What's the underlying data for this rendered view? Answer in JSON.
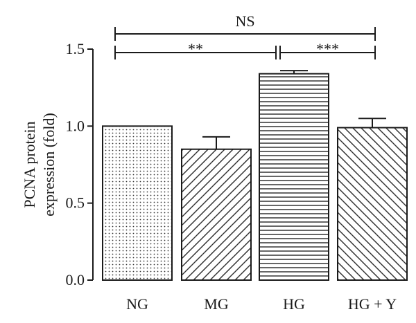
{
  "chart_data": {
    "type": "bar",
    "categories": [
      "NG",
      "MG",
      "HG",
      "HG + Y"
    ],
    "values": [
      1.0,
      0.85,
      1.34,
      0.99
    ],
    "error_upper": [
      0.0,
      0.08,
      0.02,
      0.06
    ],
    "patterns": [
      "dots",
      "diagonal",
      "horizontal",
      "back-diagonal"
    ],
    "ylabel_lines": [
      "PCNA protein",
      "expression (fold)"
    ],
    "yticks": [
      "0.0",
      "0.5",
      "1.0",
      "1.5"
    ],
    "ylim": [
      0,
      1.5
    ],
    "significance": [
      {
        "from": "NG",
        "to": "HG + Y",
        "label": "NS"
      },
      {
        "from": "NG",
        "to": "HG",
        "label": "**"
      },
      {
        "from": "HG",
        "to": "HG + Y",
        "label": "***"
      }
    ],
    "colors": {
      "bar_fill": "#ffffff",
      "stroke": "#1a1a1a",
      "pattern": "#333333"
    }
  }
}
